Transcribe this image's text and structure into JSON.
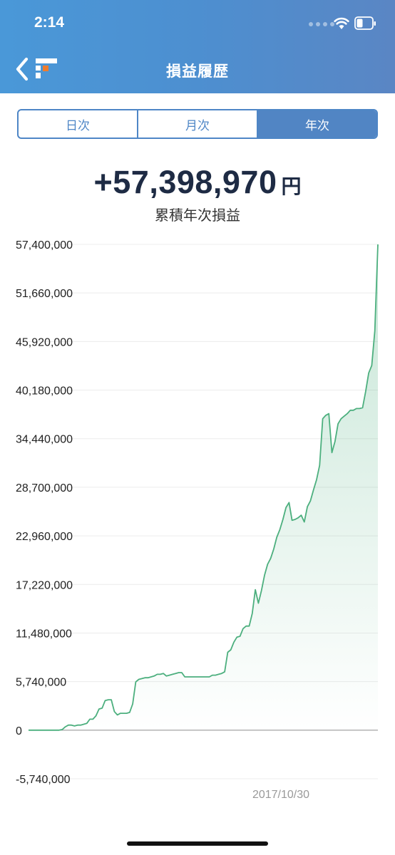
{
  "status_bar": {
    "time": "2:14"
  },
  "nav": {
    "title": "損益履歴"
  },
  "segments": [
    {
      "label": "日次",
      "active": false
    },
    {
      "label": "月次",
      "active": false
    },
    {
      "label": "年次",
      "active": true
    }
  ],
  "summary": {
    "amount": "+57,398,970",
    "unit": "円",
    "label": "累積年次損益"
  },
  "colors": {
    "header": "#4d8fd0",
    "accent": "#5185c4",
    "line": "#4caf7e",
    "text": "#1e2b44"
  },
  "chart_data": {
    "type": "area",
    "y_ticks": [
      "57,400,000",
      "51,660,000",
      "45,920,000",
      "40,180,000",
      "34,440,000",
      "28,700,000",
      "22,960,000",
      "17,220,000",
      "11,480,000",
      "5,740,000",
      "0",
      "-5,740,000"
    ],
    "ylim": [
      -5740000,
      57400000
    ],
    "x_labels": [
      "2017/10/30"
    ],
    "grid": true,
    "values": [
      0,
      0,
      0,
      0,
      0,
      0,
      0,
      0,
      0,
      0,
      0,
      80000,
      400000,
      600000,
      600000,
      500000,
      600000,
      600000,
      700000,
      800000,
      1300000,
      1300000,
      1700000,
      2500000,
      2600000,
      3500000,
      3600000,
      3600000,
      2200000,
      1800000,
      2000000,
      2000000,
      2000000,
      2100000,
      3100000,
      5700000,
      6000000,
      6100000,
      6200000,
      6200000,
      6300000,
      6400000,
      6600000,
      6600000,
      6700000,
      6400000,
      6500000,
      6600000,
      6700000,
      6800000,
      6800000,
      6300000,
      6300000,
      6300000,
      6300000,
      6300000,
      6300000,
      6300000,
      6300000,
      6300000,
      6500000,
      6500000,
      6600000,
      6700000,
      6900000,
      9200000,
      9500000,
      10400000,
      11000000,
      11100000,
      12000000,
      12300000,
      12300000,
      13800000,
      16600000,
      15000000,
      16500000,
      18300000,
      19600000,
      20300000,
      21400000,
      22800000,
      23700000,
      24900000,
      26300000,
      26900000,
      24800000,
      24900000,
      25100000,
      25400000,
      24600000,
      26400000,
      27100000,
      28400000,
      29600000,
      31300000,
      36800000,
      37200000,
      37400000,
      32800000,
      34100000,
      36200000,
      36800000,
      37100000,
      37400000,
      37800000,
      37800000,
      38000000,
      38000000,
      38100000,
      40000000,
      42200000,
      43100000,
      47200000,
      57398970
    ]
  }
}
